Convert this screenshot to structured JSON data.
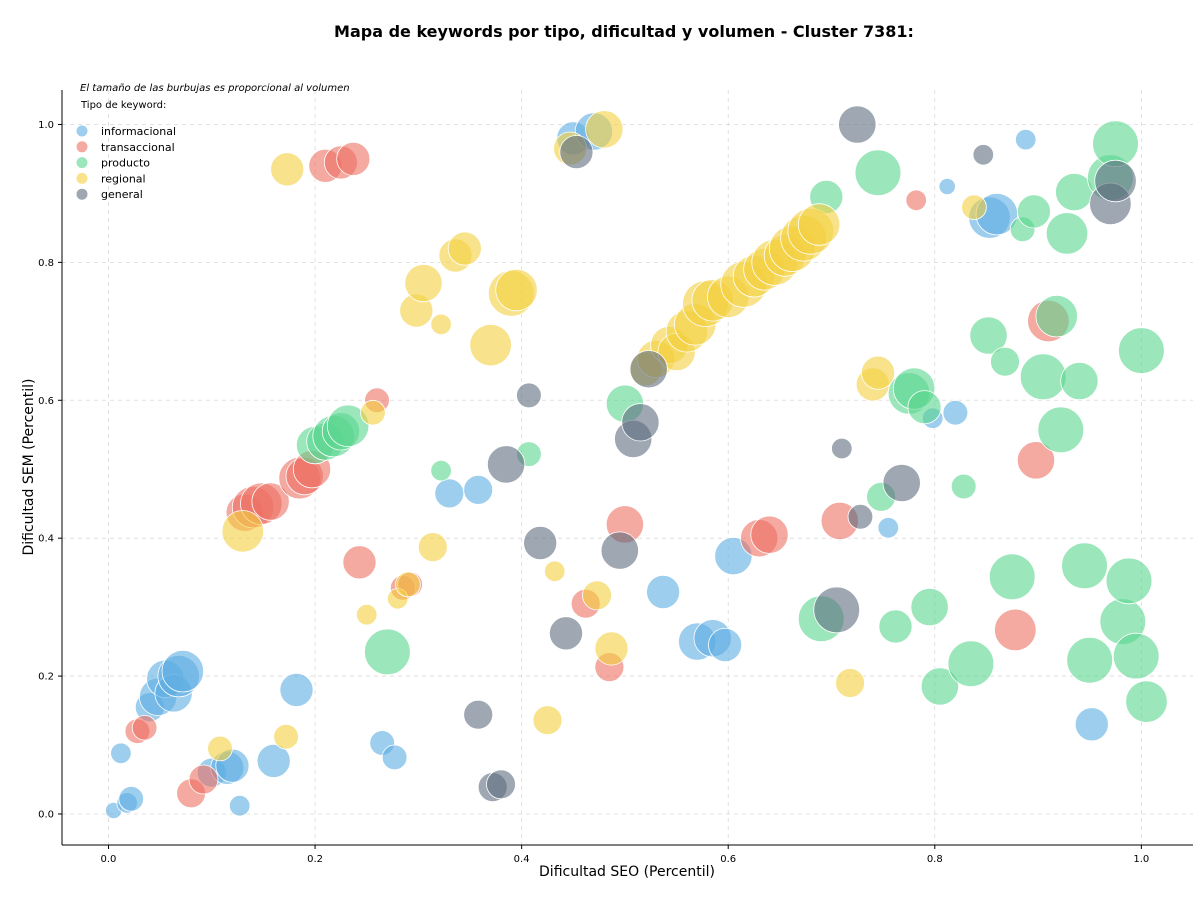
{
  "chart_data": {
    "type": "scatter",
    "title": "Mapa de keywords por tipo, dificultad y volumen - Cluster 7381:",
    "xlabel": "Dificultad SEO (Percentil)",
    "ylabel": "Dificultad SEM (Percentil)",
    "xlim": [
      -0.045,
      1.05
    ],
    "ylim": [
      -0.045,
      1.05
    ],
    "x_ticks": [
      "0.0",
      "0.2",
      "0.4",
      "0.6",
      "0.8",
      "1.0"
    ],
    "y_ticks": [
      "0.0",
      "0.2",
      "0.4",
      "0.6",
      "0.8",
      "1.0"
    ],
    "grid": true,
    "note": "El tamaño de las burbujas es proporcional al volumen",
    "legend_title": "Tipo de keyword:",
    "legend_position": "top-left",
    "series": [
      {
        "name": "informacional",
        "color": "#5DADE2",
        "points": [
          [
            0.005,
            0.005,
            2
          ],
          [
            0.012,
            0.088,
            3
          ],
          [
            0.018,
            0.016,
            3
          ],
          [
            0.022,
            0.022,
            4
          ],
          [
            0.04,
            0.155,
            5
          ],
          [
            0.048,
            0.17,
            7
          ],
          [
            0.055,
            0.196,
            7
          ],
          [
            0.063,
            0.175,
            7
          ],
          [
            0.068,
            0.2,
            8
          ],
          [
            0.072,
            0.207,
            8
          ],
          [
            0.1,
            0.06,
            5
          ],
          [
            0.115,
            0.067,
            6
          ],
          [
            0.12,
            0.07,
            6
          ],
          [
            0.127,
            0.012,
            3
          ],
          [
            0.16,
            0.077,
            6
          ],
          [
            0.182,
            0.18,
            6
          ],
          [
            0.265,
            0.103,
            4
          ],
          [
            0.277,
            0.082,
            4
          ],
          [
            0.33,
            0.465,
            5
          ],
          [
            0.358,
            0.47,
            5
          ],
          [
            0.45,
            0.98,
            6
          ],
          [
            0.47,
            0.99,
            7
          ],
          [
            0.537,
            0.322,
            6
          ],
          [
            0.57,
            0.25,
            7
          ],
          [
            0.585,
            0.255,
            7
          ],
          [
            0.597,
            0.245,
            6
          ],
          [
            0.605,
            0.374,
            7
          ],
          [
            0.755,
            0.415,
            3
          ],
          [
            0.798,
            0.574,
            3
          ],
          [
            0.812,
            0.91,
            2
          ],
          [
            0.82,
            0.582,
            4
          ],
          [
            0.853,
            0.865,
            8
          ],
          [
            0.86,
            0.87,
            8
          ],
          [
            0.888,
            0.978,
            3
          ],
          [
            0.952,
            0.13,
            6
          ]
        ]
      },
      {
        "name": "transaccional",
        "color": "#EC7063",
        "points": [
          [
            0.028,
            0.12,
            4
          ],
          [
            0.035,
            0.125,
            4
          ],
          [
            0.08,
            0.03,
            5
          ],
          [
            0.092,
            0.05,
            5
          ],
          [
            0.132,
            0.437,
            7
          ],
          [
            0.14,
            0.445,
            8
          ],
          [
            0.148,
            0.45,
            8
          ],
          [
            0.157,
            0.453,
            7
          ],
          [
            0.185,
            0.487,
            8
          ],
          [
            0.19,
            0.49,
            7
          ],
          [
            0.197,
            0.5,
            7
          ],
          [
            0.21,
            0.94,
            6
          ],
          [
            0.225,
            0.945,
            6
          ],
          [
            0.237,
            0.95,
            6
          ],
          [
            0.243,
            0.365,
            6
          ],
          [
            0.26,
            0.6,
            4
          ],
          [
            0.285,
            0.328,
            4
          ],
          [
            0.292,
            0.333,
            4
          ],
          [
            0.462,
            0.305,
            5
          ],
          [
            0.485,
            0.213,
            5
          ],
          [
            0.5,
            0.42,
            7
          ],
          [
            0.63,
            0.4,
            7
          ],
          [
            0.64,
            0.405,
            7
          ],
          [
            0.708,
            0.425,
            7
          ],
          [
            0.782,
            0.89,
            3
          ],
          [
            0.878,
            0.267,
            8
          ],
          [
            0.898,
            0.513,
            7
          ],
          [
            0.91,
            0.715,
            8
          ]
        ]
      },
      {
        "name": "producto",
        "color": "#58D68D",
        "points": [
          [
            0.2,
            0.535,
            7
          ],
          [
            0.21,
            0.54,
            7
          ],
          [
            0.218,
            0.548,
            8
          ],
          [
            0.225,
            0.555,
            7
          ],
          [
            0.232,
            0.563,
            8
          ],
          [
            0.27,
            0.235,
            9
          ],
          [
            0.322,
            0.498,
            3
          ],
          [
            0.407,
            0.522,
            4
          ],
          [
            0.5,
            0.595,
            7
          ],
          [
            0.69,
            0.283,
            9
          ],
          [
            0.695,
            0.895,
            6
          ],
          [
            0.745,
            0.93,
            9
          ],
          [
            0.748,
            0.46,
            5
          ],
          [
            0.762,
            0.272,
            6
          ],
          [
            0.775,
            0.61,
            8
          ],
          [
            0.78,
            0.617,
            8
          ],
          [
            0.79,
            0.59,
            6
          ],
          [
            0.795,
            0.3,
            7
          ],
          [
            0.805,
            0.185,
            7
          ],
          [
            0.828,
            0.475,
            4
          ],
          [
            0.835,
            0.218,
            9
          ],
          [
            0.852,
            0.694,
            7
          ],
          [
            0.868,
            0.656,
            5
          ],
          [
            0.875,
            0.344,
            9
          ],
          [
            0.885,
            0.848,
            4
          ],
          [
            0.896,
            0.874,
            6
          ],
          [
            0.905,
            0.634,
            9
          ],
          [
            0.918,
            0.722,
            8
          ],
          [
            0.922,
            0.557,
            9
          ],
          [
            0.928,
            0.842,
            8
          ],
          [
            0.935,
            0.902,
            7
          ],
          [
            0.94,
            0.628,
            7
          ],
          [
            0.945,
            0.36,
            9
          ],
          [
            0.95,
            0.223,
            9
          ],
          [
            0.97,
            0.923,
            9
          ],
          [
            0.975,
            0.972,
            9
          ],
          [
            0.982,
            0.279,
            9
          ],
          [
            0.988,
            0.338,
            9
          ],
          [
            0.995,
            0.229,
            9
          ],
          [
            1.0,
            0.672,
            9
          ],
          [
            1.005,
            0.163,
            8
          ]
        ]
      },
      {
        "name": "regional",
        "color": "#F4D03F",
        "points": [
          [
            0.108,
            0.095,
            4
          ],
          [
            0.13,
            0.41,
            8
          ],
          [
            0.172,
            0.112,
            4
          ],
          [
            0.173,
            0.935,
            6
          ],
          [
            0.25,
            0.289,
            3
          ],
          [
            0.256,
            0.582,
            4
          ],
          [
            0.28,
            0.312,
            3
          ],
          [
            0.29,
            0.333,
            4
          ],
          [
            0.298,
            0.73,
            6
          ],
          [
            0.305,
            0.77,
            7
          ],
          [
            0.314,
            0.387,
            5
          ],
          [
            0.322,
            0.71,
            3
          ],
          [
            0.336,
            0.81,
            6
          ],
          [
            0.345,
            0.82,
            6
          ],
          [
            0.37,
            0.68,
            8
          ],
          [
            0.39,
            0.755,
            9
          ],
          [
            0.395,
            0.76,
            8
          ],
          [
            0.425,
            0.136,
            5
          ],
          [
            0.432,
            0.352,
            3
          ],
          [
            0.447,
            0.965,
            6
          ],
          [
            0.473,
            0.317,
            5
          ],
          [
            0.48,
            0.993,
            7
          ],
          [
            0.487,
            0.24,
            6
          ],
          [
            0.52,
            0.645,
            6
          ],
          [
            0.53,
            0.66,
            7
          ],
          [
            0.543,
            0.68,
            7
          ],
          [
            0.55,
            0.67,
            7
          ],
          [
            0.56,
            0.7,
            8
          ],
          [
            0.568,
            0.71,
            8
          ],
          [
            0.578,
            0.74,
            9
          ],
          [
            0.585,
            0.745,
            8
          ],
          [
            0.6,
            0.75,
            8
          ],
          [
            0.615,
            0.768,
            9
          ],
          [
            0.625,
            0.78,
            8
          ],
          [
            0.635,
            0.79,
            8
          ],
          [
            0.645,
            0.8,
            9
          ],
          [
            0.655,
            0.81,
            8
          ],
          [
            0.662,
            0.82,
            9
          ],
          [
            0.673,
            0.835,
            9
          ],
          [
            0.68,
            0.845,
            9
          ],
          [
            0.688,
            0.855,
            8
          ],
          [
            0.718,
            0.19,
            5
          ],
          [
            0.74,
            0.623,
            6
          ],
          [
            0.745,
            0.64,
            6
          ],
          [
            0.838,
            0.88,
            4
          ]
        ]
      },
      {
        "name": "general",
        "color": "#5D6D7E",
        "points": [
          [
            0.358,
            0.144,
            5
          ],
          [
            0.372,
            0.039,
            5
          ],
          [
            0.38,
            0.043,
            5
          ],
          [
            0.385,
            0.507,
            7
          ],
          [
            0.407,
            0.607,
            4
          ],
          [
            0.418,
            0.393,
            6
          ],
          [
            0.443,
            0.262,
            6
          ],
          [
            0.453,
            0.96,
            6
          ],
          [
            0.495,
            0.382,
            7
          ],
          [
            0.508,
            0.544,
            7
          ],
          [
            0.515,
            0.568,
            7
          ],
          [
            0.523,
            0.645,
            7
          ],
          [
            0.705,
            0.296,
            9
          ],
          [
            0.71,
            0.53,
            3
          ],
          [
            0.725,
            1.0,
            7
          ],
          [
            0.728,
            0.431,
            4
          ],
          [
            0.768,
            0.48,
            7
          ],
          [
            0.847,
            0.956,
            3
          ],
          [
            0.97,
            0.885,
            8
          ],
          [
            0.975,
            0.918,
            8
          ]
        ]
      }
    ]
  }
}
